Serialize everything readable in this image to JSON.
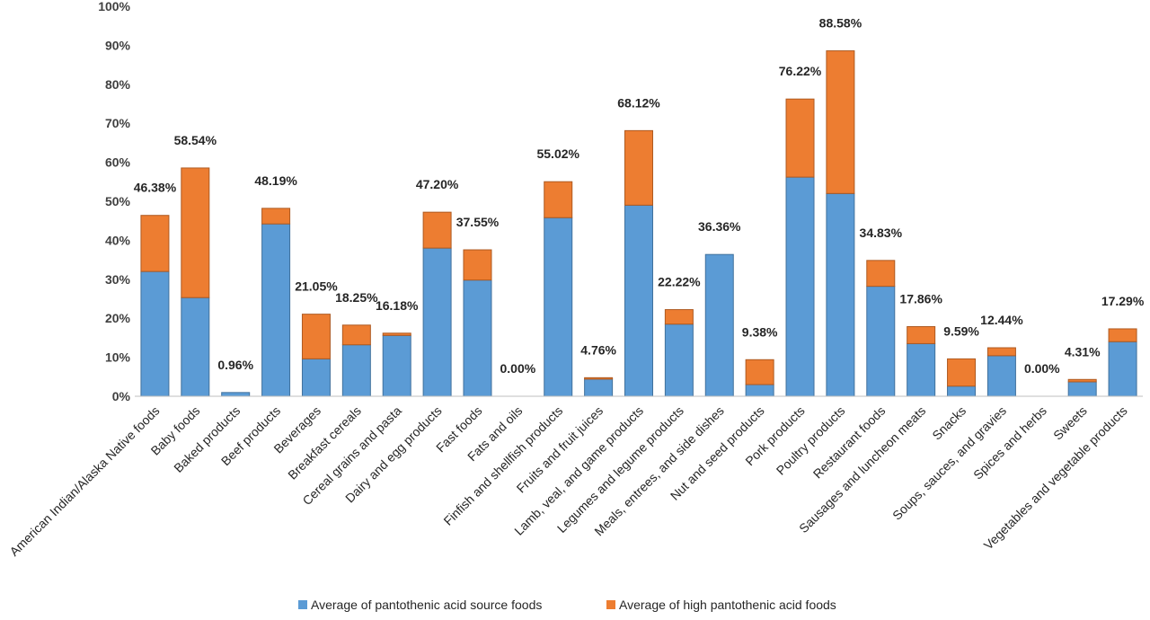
{
  "chart_data": {
    "type": "bar",
    "stacked": true,
    "ylim": [
      0,
      100
    ],
    "y_unit": "%",
    "yticks": [
      "0%",
      "10%",
      "20%",
      "30%",
      "40%",
      "50%",
      "60%",
      "70%",
      "80%",
      "90%",
      "100%"
    ],
    "grid": false,
    "legend_position": "bottom",
    "categories": [
      "American Indian/Alaska Native foods",
      "Baby foods",
      "Baked products",
      "Beef products",
      "Beverages",
      "Breakfast cereals",
      "Cereal grains and pasta",
      "Dairy and egg products",
      "Fast foods",
      "Fats and oils",
      "Finfish and shellfish products",
      "Fruits and fruit juices",
      "Lamb, veal, and game products",
      "Legumes and legume products",
      "Meals, entrees, and side dishes",
      "Nut and seed products",
      "Pork products",
      "Poultry products",
      "Restaurant foods",
      "Sausages and luncheon meats",
      "Snacks",
      "Soups, sauces, and gravies",
      "Spices and herbs",
      "Sweets",
      "Vegetables and vegetable products"
    ],
    "series": [
      {
        "name": "Average of pantothenic acid source foods",
        "color": "#5B9BD5",
        "values": [
          32.0,
          25.3,
          0.96,
          44.2,
          9.6,
          13.2,
          15.6,
          38.0,
          29.8,
          0.0,
          45.8,
          4.4,
          49.0,
          18.5,
          36.36,
          3.0,
          56.2,
          52.0,
          28.2,
          13.5,
          2.6,
          10.4,
          0.0,
          3.7,
          14.0
        ]
      },
      {
        "name": "Average of high pantothenic acid foods",
        "color": "#ED7D31",
        "values": [
          14.38,
          33.24,
          0.0,
          3.99,
          11.45,
          5.05,
          0.58,
          9.2,
          7.75,
          0.0,
          9.22,
          0.36,
          19.12,
          3.72,
          0.0,
          6.38,
          20.02,
          36.58,
          6.63,
          4.36,
          6.99,
          2.04,
          0.0,
          0.61,
          3.29
        ]
      }
    ],
    "data_labels": [
      "46.38%",
      "58.54%",
      "0.96%",
      "48.19%",
      "21.05%",
      "18.25%",
      "16.18%",
      "47.20%",
      "37.55%",
      "0.00%",
      "55.02%",
      "4.76%",
      "68.12%",
      "22.22%",
      "36.36%",
      "9.38%",
      "76.22%",
      "88.58%",
      "34.83%",
      "17.86%",
      "9.59%",
      "12.44%",
      "0.00%",
      "4.31%",
      "17.29%"
    ],
    "totals": [
      46.38,
      58.54,
      0.96,
      48.19,
      21.05,
      18.25,
      16.18,
      47.2,
      37.55,
      0.0,
      55.02,
      4.76,
      68.12,
      22.22,
      36.36,
      9.38,
      76.22,
      88.58,
      34.83,
      17.86,
      9.59,
      12.44,
      0.0,
      4.31,
      17.29
    ]
  }
}
